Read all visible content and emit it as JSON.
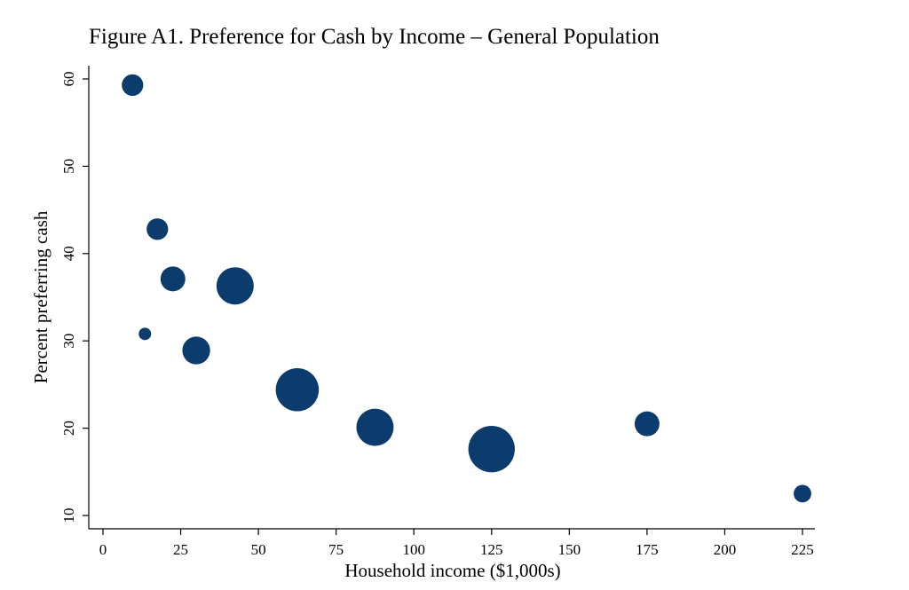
{
  "chart_data": {
    "type": "scatter",
    "title": "Figure A1. Preference for Cash by Income – General Population",
    "xlabel": "Household income ($1,000s)",
    "ylabel": "Percent preferring cash",
    "xlim": [
      0,
      225
    ],
    "ylim": [
      10,
      60
    ],
    "xticks": [
      0,
      25,
      50,
      75,
      100,
      125,
      150,
      175,
      200,
      225
    ],
    "yticks": [
      10,
      20,
      30,
      40,
      50,
      60
    ],
    "grid": false,
    "marker_color": "#0c3c6e",
    "points": [
      {
        "x": 9.5,
        "y": 59.3,
        "weight": 3
      },
      {
        "x": 13.5,
        "y": 30.8,
        "weight": 1
      },
      {
        "x": 17.5,
        "y": 42.8,
        "weight": 3
      },
      {
        "x": 22.5,
        "y": 37.1,
        "weight": 4
      },
      {
        "x": 30,
        "y": 28.9,
        "weight": 5
      },
      {
        "x": 42.5,
        "y": 36.3,
        "weight": 9
      },
      {
        "x": 62.5,
        "y": 24.4,
        "weight": 12
      },
      {
        "x": 87.5,
        "y": 20.1,
        "weight": 9
      },
      {
        "x": 125,
        "y": 17.6,
        "weight": 14
      },
      {
        "x": 175,
        "y": 20.5,
        "weight": 4
      },
      {
        "x": 225,
        "y": 12.5,
        "weight": 2
      }
    ]
  }
}
